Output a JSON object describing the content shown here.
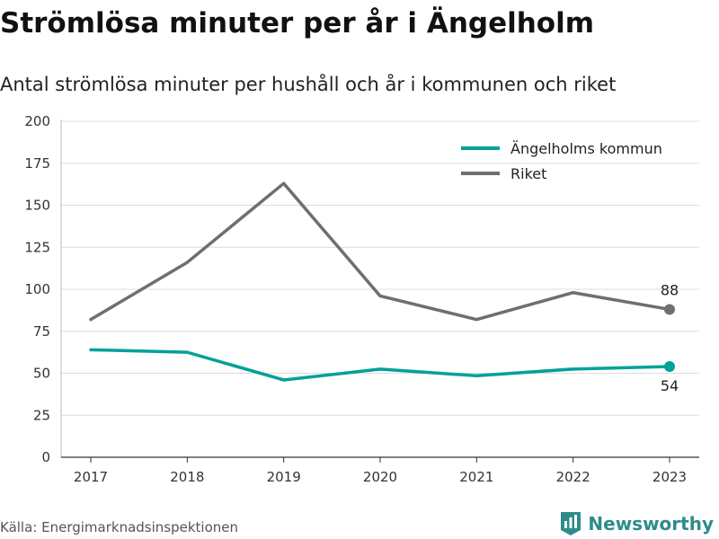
{
  "header": {
    "title": "Strömlösa minuter per år i Ängelholm",
    "subtitle": "Antal strömlösa minuter per hushåll och år i kommunen och riket"
  },
  "footer": {
    "source": "Källa: Energimarknadsinspektionen",
    "brand": "Newsworthy",
    "brand_icon": "bar-chart-logo-icon"
  },
  "colors": {
    "kommun": "#00a19a",
    "riket": "#6e6e73",
    "grid": "#dcdcdc",
    "brand": "#2e8b8b"
  },
  "chart_data": {
    "type": "line",
    "x": [
      2017,
      2018,
      2019,
      2020,
      2021,
      2022,
      2023
    ],
    "series": [
      {
        "name": "Ängelholms kommun",
        "values": [
          64,
          62.5,
          46,
          52.5,
          48.5,
          52.5,
          54
        ]
      },
      {
        "name": "Riket",
        "values": [
          82,
          116,
          163,
          96,
          82,
          98,
          88
        ]
      }
    ],
    "ylim": [
      0,
      200
    ],
    "yticks": [
      0,
      25,
      50,
      75,
      100,
      125,
      150,
      175,
      200
    ],
    "end_labels": [
      "54",
      "88"
    ],
    "grid": true,
    "legend": "top-right"
  }
}
